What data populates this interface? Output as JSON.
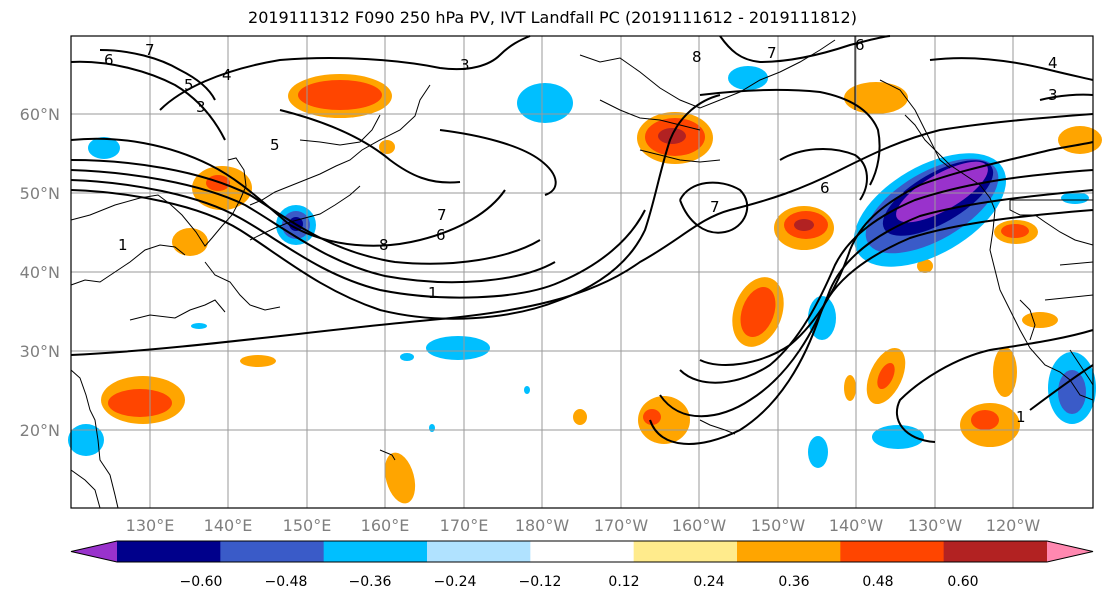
{
  "title": "2019111312 F090 250 hPa PV, IVT Landfall PC (2019111612 - 2019111812)",
  "lat_labels": [
    "60°N",
    "50°N",
    "40°N",
    "30°N",
    "20°N"
  ],
  "lon_labels": [
    "130°E",
    "140°E",
    "150°E",
    "160°E",
    "170°E",
    "180°W",
    "170°W",
    "160°W",
    "150°W",
    "140°W",
    "130°W",
    "120°W"
  ],
  "colorbar": {
    "ticks": [
      "−0.60",
      "−0.48",
      "−0.36",
      "−0.24",
      "−0.12",
      "0.12",
      "0.24",
      "0.36",
      "0.48",
      "0.60"
    ],
    "colors": [
      "#9932cc",
      "#00008b",
      "#3a5bc8",
      "#00bfff",
      "#b0e2ff",
      "#ffffff",
      "#ffeb8c",
      "#ffa500",
      "#ff4500",
      "#b22222",
      "#ff88b0"
    ]
  },
  "contour_labels": [
    "7",
    "6",
    "5",
    "4",
    "3",
    "1",
    "3",
    "5",
    "8",
    "6",
    "7",
    "1",
    "8",
    "7",
    "6",
    "7",
    "6",
    "4",
    "1",
    "3"
  ]
}
